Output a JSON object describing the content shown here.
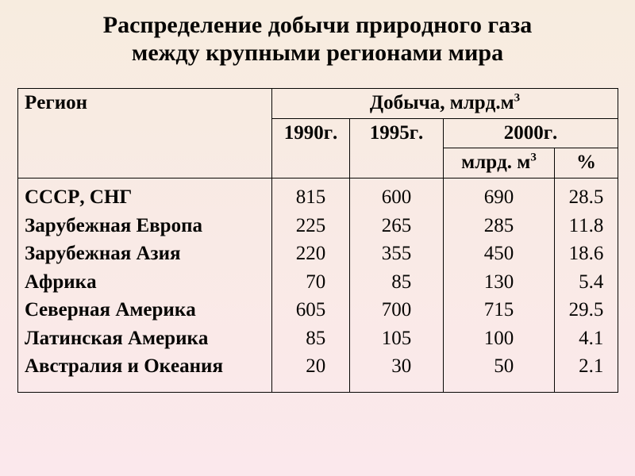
{
  "title_line1": "Распределение добычи природного газа",
  "title_line2": "между крупными регионами мира",
  "table": {
    "header": {
      "region": "Регион",
      "production": "Добыча, млрд.м",
      "production_sup": "3",
      "y1990": "1990г.",
      "y1995": "1995г.",
      "y2000": "2000г.",
      "y2000_vol": "млрд. м",
      "y2000_vol_sup": "3",
      "y2000_pct": "%"
    },
    "rows": [
      {
        "region": "СССР, СНГ",
        "v1990": "815",
        "v1995": "600",
        "v2000": "690",
        "pct": "28.5"
      },
      {
        "region": "Зарубежная Европа",
        "v1990": "225",
        "v1995": "265",
        "v2000": "285",
        "pct": "11.8"
      },
      {
        "region": "Зарубежная Азия",
        "v1990": "220",
        "v1995": "355",
        "v2000": "450",
        "pct": "18.6"
      },
      {
        "region": "Африка",
        "v1990": "  70",
        "v1995": "  85",
        "v2000": "130",
        "pct": "  5.4"
      },
      {
        "region": "Северная Америка",
        "v1990": "605",
        "v1995": "700",
        "v2000": "715",
        "pct": "29.5"
      },
      {
        "region": "Латинская Америка",
        "v1990": "  85",
        "v1995": "105",
        "v2000": "100",
        "pct": "  4.1"
      },
      {
        "region": "Австралия и Океания",
        "v1990": "  20",
        "v1995": "  30",
        "v2000": "  50",
        "pct": "  2.1"
      }
    ],
    "colors": {
      "text": "#070604",
      "border": "#070604",
      "bg_top": "#f7ecdf",
      "bg_bottom": "#fbe8ec"
    },
    "fonts": {
      "title_size_pt": 22,
      "body_size_pt": 19,
      "weight_header": 700,
      "weight_region": 700,
      "weight_data": 400
    }
  }
}
